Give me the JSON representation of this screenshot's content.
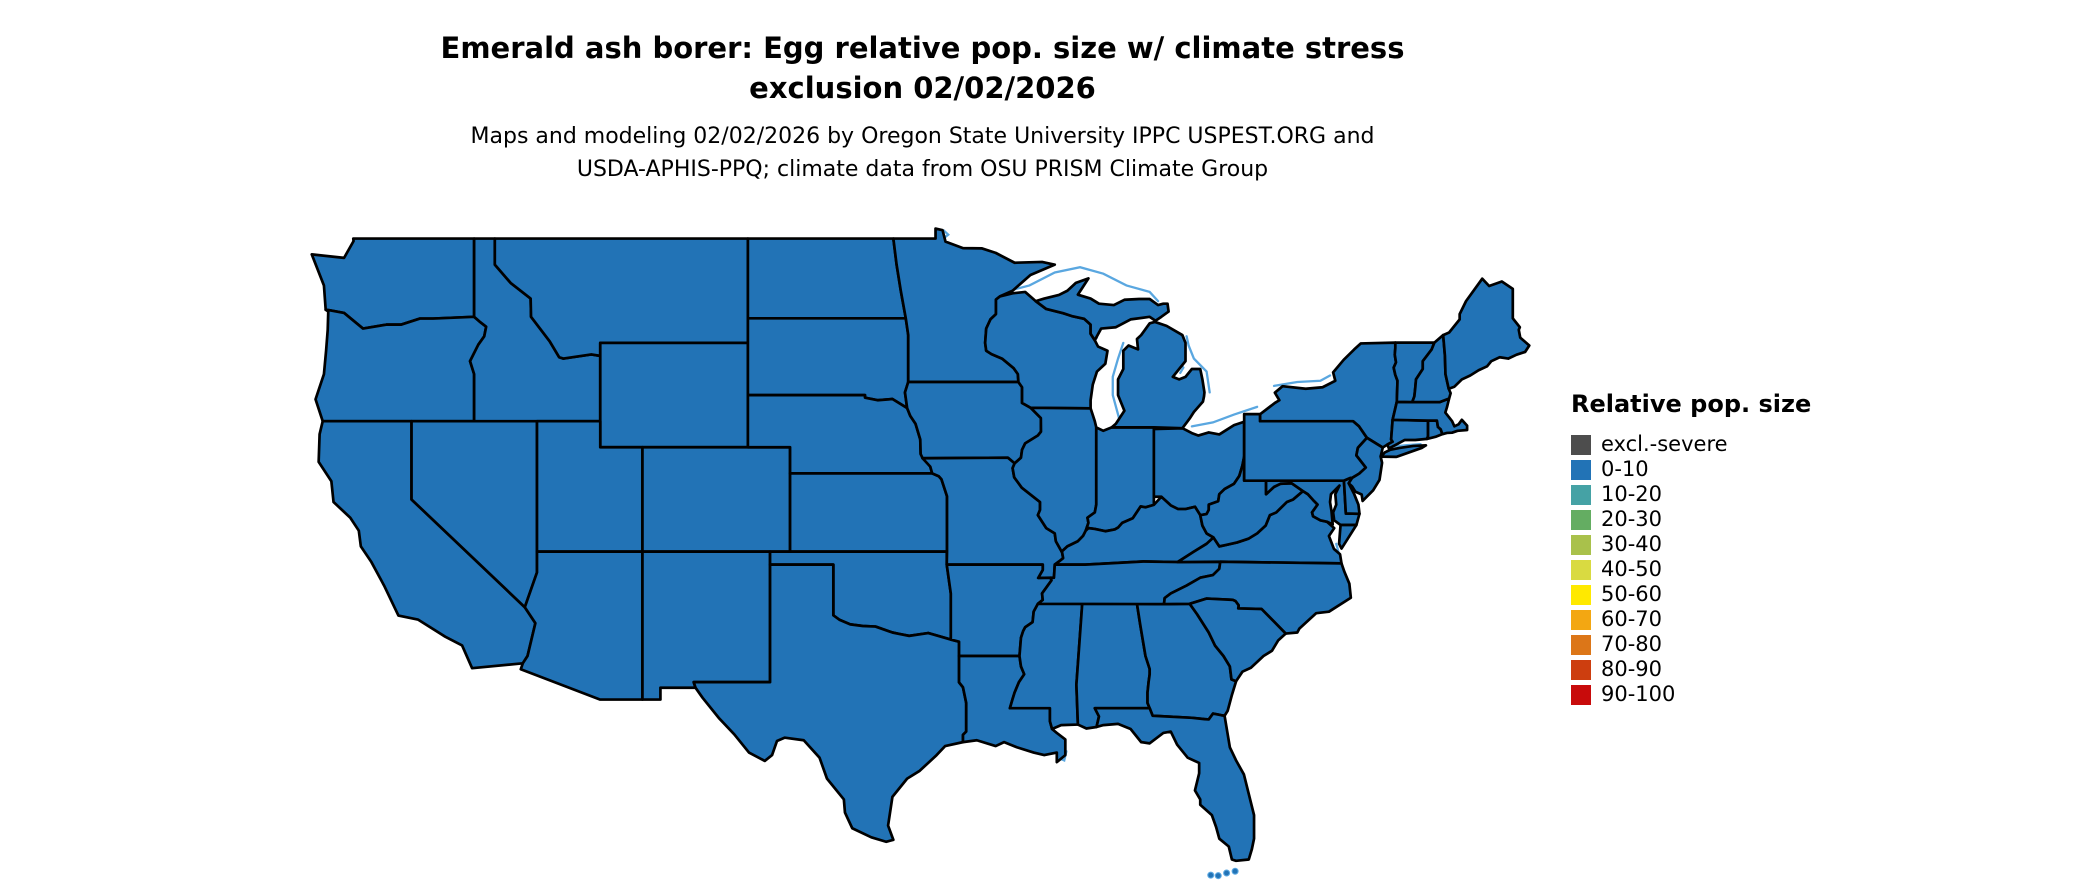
{
  "header": {
    "title_lines": [
      "Emerald ash borer: Egg relative pop. size w/ climate stress",
      "exclusion 02/02/2026"
    ],
    "subtitle_lines": [
      "Maps and modeling 02/02/2026 by Oregon State University IPPC USPEST.ORG and",
      "USDA-APHIS-PPQ; climate data from OSU PRISM Climate Group"
    ]
  },
  "legend": {
    "title": "Relative pop. size",
    "items": [
      {
        "label": "excl.-severe",
        "color": "#4d4d4d"
      },
      {
        "label": "0-10",
        "color": "#2273b6"
      },
      {
        "label": "10-20",
        "color": "#45a2a5"
      },
      {
        "label": "20-30",
        "color": "#64ad62"
      },
      {
        "label": "30-40",
        "color": "#a9c14b"
      },
      {
        "label": "40-50",
        "color": "#d9da41"
      },
      {
        "label": "50-60",
        "color": "#ffe900"
      },
      {
        "label": "60-70",
        "color": "#f3a712"
      },
      {
        "label": "70-80",
        "color": "#dc7618"
      },
      {
        "label": "80-90",
        "color": "#cd3e0f"
      },
      {
        "label": "90-100",
        "color": "#c80b0b"
      }
    ]
  },
  "map": {
    "fill_color": "#2273b6",
    "border_color": "#000000",
    "water_color": "#5aa7e0"
  },
  "chart_data": {
    "type": "choropleth_map",
    "region": "conterminous United States",
    "legend_title": "Relative pop. size",
    "classes": [
      "excl.-severe",
      "0-10",
      "10-20",
      "20-30",
      "30-40",
      "40-50",
      "50-60",
      "60-70",
      "70-80",
      "80-90",
      "90-100"
    ],
    "value_shown_everywhere": "0-10"
  }
}
